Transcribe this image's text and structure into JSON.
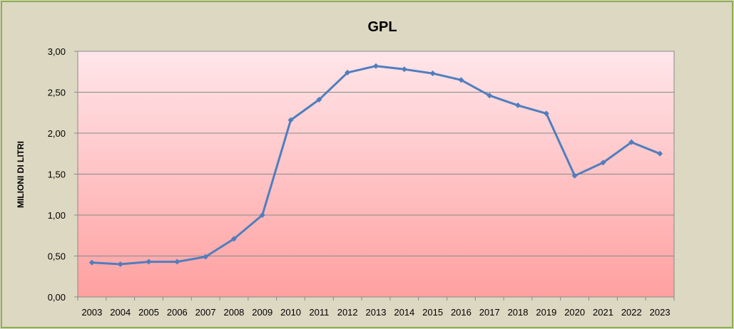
{
  "chart_data": {
    "type": "line",
    "title": "GPL",
    "xlabel": "",
    "ylabel": "MILIONI DI LITRI",
    "ylim": [
      0,
      3
    ],
    "yticks": [
      "0,00",
      "0,50",
      "1,00",
      "1,50",
      "2,00",
      "2,50",
      "3,00"
    ],
    "grid": true,
    "legend": "none",
    "categories": [
      "2003",
      "2004",
      "2005",
      "2006",
      "2007",
      "2008",
      "2009",
      "2010",
      "2011",
      "2012",
      "2013",
      "2014",
      "2015",
      "2016",
      "2017",
      "2018",
      "2019",
      "2020",
      "2021",
      "2022",
      "2023"
    ],
    "series": [
      {
        "values": [
          0.42,
          0.4,
          0.43,
          0.43,
          0.49,
          0.71,
          1.0,
          2.16,
          2.41,
          2.74,
          2.82,
          2.78,
          2.73,
          2.65,
          2.46,
          2.34,
          2.24,
          1.48,
          1.64,
          1.89,
          1.75
        ],
        "color": "#4f7ebe"
      }
    ],
    "plot_gradient": [
      "#ffe6ea",
      "#ffa0a0"
    ],
    "background_color": "#ddd8c2",
    "border_color": "#8cae55",
    "gridline_color": "#888888"
  }
}
